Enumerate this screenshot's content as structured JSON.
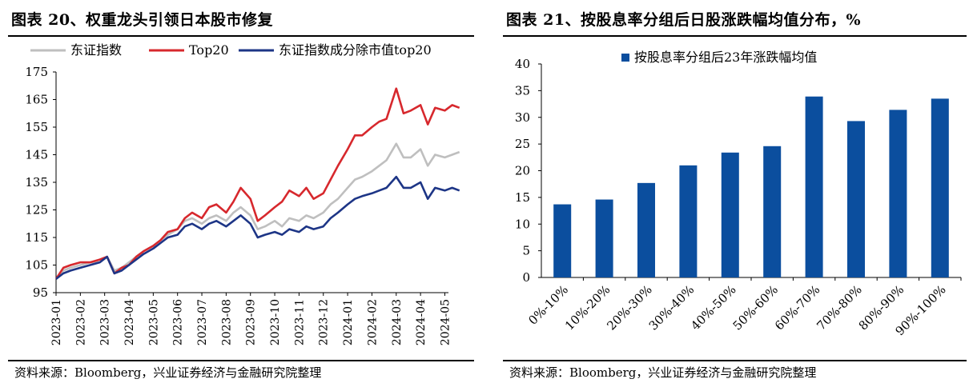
{
  "left": {
    "title": "图表 20、权重龙头引领日本股市修复",
    "source": "资料来源：Bloomberg，兴业证券经济与金融研究院整理"
  },
  "right": {
    "title": "图表 21、按股息率分组后日股涨跌幅均值分布，%",
    "source": "资料来源：Bloomberg，兴业证券经济与金融研究院整理"
  },
  "chart_data": [
    {
      "type": "line",
      "title": "",
      "xlabel": "",
      "ylabel": "",
      "x_ticks": [
        "2023-01",
        "2023-02",
        "2023-03",
        "2023-04",
        "2023-05",
        "2023-06",
        "2023-07",
        "2023-08",
        "2023-09",
        "2023-10",
        "2023-11",
        "2023-12",
        "2024-01",
        "2024-02",
        "2024-03",
        "2024-04",
        "2024-05"
      ],
      "ylim": [
        95,
        175
      ],
      "y_ticks": [
        95,
        105,
        115,
        125,
        135,
        145,
        155,
        165,
        175
      ],
      "grid": false,
      "legend_position": "top",
      "series": [
        {
          "name": "东证指数",
          "color": "#BFBFBF",
          "x": [
            0,
            0.3,
            0.6,
            1.0,
            1.4,
            1.8,
            2.1,
            2.4,
            2.7,
            3.0,
            3.3,
            3.6,
            4.0,
            4.3,
            4.6,
            5.0,
            5.3,
            5.6,
            6.0,
            6.3,
            6.6,
            7.0,
            7.3,
            7.6,
            8.0,
            8.3,
            8.6,
            9.0,
            9.3,
            9.6,
            10.0,
            10.3,
            10.6,
            11.0,
            11.3,
            11.6,
            12.0,
            12.3,
            12.6,
            13.0,
            13.3,
            13.6,
            14.0,
            14.3,
            14.6,
            15.0,
            15.3,
            15.6,
            16.0,
            16.3,
            16.6
          ],
          "values": [
            100,
            103,
            104,
            105,
            106,
            106,
            108,
            103,
            104,
            106,
            108,
            110,
            112,
            114,
            116,
            118,
            121,
            122,
            120,
            122,
            123,
            121,
            124,
            126,
            123,
            118,
            119,
            121,
            119,
            122,
            121,
            123,
            122,
            124,
            127,
            129,
            133,
            136,
            137,
            139,
            141,
            143,
            149,
            144,
            144,
            147,
            141,
            145,
            144,
            145,
            146
          ]
        },
        {
          "name": "Top20",
          "color": "#D7282D",
          "x": [
            0,
            0.3,
            0.6,
            1.0,
            1.4,
            1.8,
            2.1,
            2.4,
            2.7,
            3.0,
            3.3,
            3.6,
            4.0,
            4.3,
            4.6,
            5.0,
            5.3,
            5.6,
            6.0,
            6.3,
            6.6,
            7.0,
            7.3,
            7.6,
            8.0,
            8.3,
            8.6,
            9.0,
            9.3,
            9.6,
            10.0,
            10.3,
            10.6,
            11.0,
            11.3,
            11.6,
            12.0,
            12.3,
            12.6,
            13.0,
            13.3,
            13.6,
            14.0,
            14.3,
            14.6,
            15.0,
            15.3,
            15.6,
            16.0,
            16.3,
            16.6
          ],
          "values": [
            100,
            104,
            105,
            106,
            106,
            107,
            108,
            102,
            104,
            105,
            108,
            110,
            112,
            114,
            117,
            118,
            122,
            124,
            122,
            126,
            127,
            124,
            128,
            133,
            129,
            121,
            123,
            126,
            128,
            132,
            130,
            133,
            129,
            131,
            136,
            141,
            147,
            152,
            152,
            155,
            157,
            158,
            169,
            160,
            161,
            163,
            156,
            162,
            161,
            163,
            162
          ]
        },
        {
          "name": "东证指数成分除市值top20",
          "color": "#1D3586",
          "x": [
            0,
            0.3,
            0.6,
            1.0,
            1.4,
            1.8,
            2.1,
            2.4,
            2.7,
            3.0,
            3.3,
            3.6,
            4.0,
            4.3,
            4.6,
            5.0,
            5.3,
            5.6,
            6.0,
            6.3,
            6.6,
            7.0,
            7.3,
            7.6,
            8.0,
            8.3,
            8.6,
            9.0,
            9.3,
            9.6,
            10.0,
            10.3,
            10.6,
            11.0,
            11.3,
            11.6,
            12.0,
            12.3,
            12.6,
            13.0,
            13.3,
            13.6,
            14.0,
            14.3,
            14.6,
            15.0,
            15.3,
            15.6,
            16.0,
            16.3,
            16.6
          ],
          "values": [
            100,
            102,
            103,
            104,
            105,
            106,
            108,
            102,
            103,
            105,
            107,
            109,
            111,
            113,
            115,
            116,
            119,
            120,
            118,
            120,
            121,
            119,
            121,
            123,
            120,
            115,
            116,
            117,
            116,
            118,
            117,
            119,
            118,
            119,
            122,
            124,
            127,
            129,
            130,
            131,
            132,
            133,
            137,
            133,
            133,
            135,
            129,
            133,
            132,
            133,
            132
          ]
        }
      ]
    },
    {
      "type": "bar",
      "title": "",
      "xlabel": "",
      "ylabel": "",
      "ylim": [
        0,
        40
      ],
      "y_ticks": [
        0,
        5,
        10,
        15,
        20,
        25,
        30,
        35,
        40
      ],
      "grid": false,
      "legend_position": "top",
      "categories": [
        "0%-10%",
        "10%-20%",
        "20%-30%",
        "30%-40%",
        "40%-50%",
        "50%-60%",
        "60%-70%",
        "70%-80%",
        "80%-90%",
        "90%-100%"
      ],
      "series": [
        {
          "name": "按股息率分组后23年涨跌幅均值",
          "color": "#0B4E9E",
          "values": [
            13.7,
            14.6,
            17.7,
            21.0,
            23.4,
            24.6,
            33.9,
            29.3,
            31.4,
            33.5
          ]
        }
      ]
    }
  ]
}
